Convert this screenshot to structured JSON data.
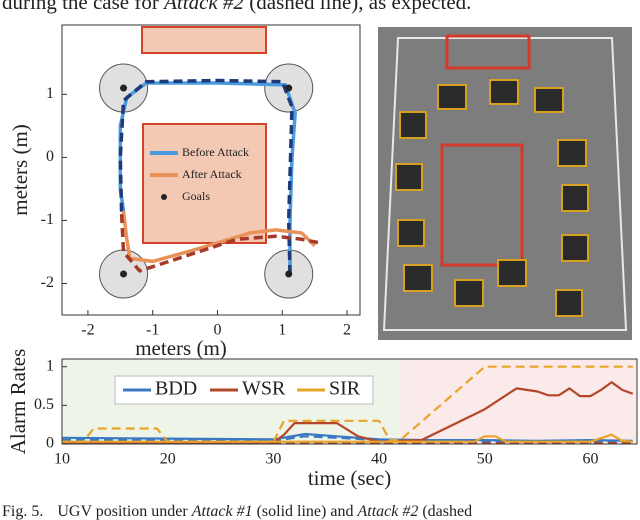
{
  "text_above": [
    "during the case for ",
    "Attack #2",
    " (dashed line), as expected."
  ],
  "chart_data": [
    {
      "type": "line",
      "xlabel": "meters (m)",
      "ylabel": "meters (m)",
      "xlim": [
        -2.4,
        2.2
      ],
      "ylim": [
        -2.5,
        2.1
      ],
      "xticks": [
        -2,
        -1,
        0,
        1,
        2
      ],
      "yticks": [
        -2,
        -1,
        0,
        1
      ],
      "series": [
        {
          "name": "Before Attack",
          "color": "#4a9be0",
          "style": "solid",
          "x": [
            1.12,
            1.12,
            1.15,
            1.2,
            1.05,
            0,
            -1.1,
            -1.4,
            -1.5,
            -1.5,
            -1.45
          ],
          "values": [
            -1.85,
            -1.0,
            0,
            0.7,
            1.15,
            1.18,
            1.18,
            0.95,
            0.5,
            -0.5,
            -0.85
          ]
        },
        {
          "color": "#1f3a7a",
          "style": "dashed",
          "x": [
            1.12,
            1.1,
            1.15,
            1.0,
            0,
            -1.1,
            -1.45,
            -1.5,
            -1.48
          ],
          "values": [
            -1.85,
            -1.0,
            0.8,
            1.2,
            1.22,
            1.2,
            0.9,
            0,
            -0.9
          ]
        },
        {
          "name": "After Attack",
          "color": "#e8925a",
          "style": "solid",
          "x": [
            -1.45,
            -1.4,
            -1.35,
            -1.0,
            -0.3,
            0.5,
            0.9,
            1.3,
            1.5
          ],
          "values": [
            -0.85,
            -1.3,
            -1.6,
            -1.65,
            -1.45,
            -1.2,
            -1.15,
            -1.2,
            -1.4
          ]
        },
        {
          "color": "#a63a2a",
          "style": "dashed",
          "x": [
            -1.48,
            -1.45,
            -1.2,
            -0.6,
            0.3,
            0.9,
            1.3,
            1.55
          ],
          "values": [
            -0.9,
            -1.5,
            -1.8,
            -1.6,
            -1.3,
            -1.25,
            -1.3,
            -1.35
          ]
        },
        {
          "name": "Goals",
          "color": "#222222",
          "style": "markers",
          "x": [
            -1.45,
            1.1,
            -1.45,
            1.1
          ],
          "values": [
            1.1,
            1.1,
            -1.85,
            -1.85
          ]
        }
      ]
    },
    {
      "type": "line",
      "xlabel": "time (sec)",
      "ylabel": "Alarm Rates",
      "xlim": [
        10,
        64.4
      ],
      "ylim": [
        0,
        1.1
      ],
      "xticks": [
        10,
        20,
        30,
        40,
        50,
        60
      ],
      "yticks": [
        0,
        0.5,
        1
      ],
      "regions": [
        {
          "xlim": [
            10,
            42
          ],
          "color": "#eef5e8"
        },
        {
          "xlim": [
            42,
            64.4
          ],
          "color": "#fbeaea"
        }
      ],
      "series": [
        {
          "name": "BDD",
          "color": "#3a78c2",
          "style": "solid",
          "x": [
            10,
            20,
            30,
            33,
            36,
            40,
            45,
            50,
            55,
            60,
            64
          ],
          "values": [
            0.08,
            0.07,
            0.06,
            0.13,
            0.1,
            0.06,
            0.05,
            0.05,
            0.04,
            0.05,
            0.04
          ]
        },
        {
          "color": "#3a78c2",
          "style": "dashed",
          "x": [
            10,
            20,
            30,
            33,
            36,
            40,
            45,
            50,
            55,
            60,
            64
          ],
          "values": [
            0.05,
            0.05,
            0.04,
            0.1,
            0.08,
            0.05,
            0.04,
            0.03,
            0.03,
            0.03,
            0.03
          ]
        },
        {
          "name": "WSR",
          "color": "#b5462a",
          "style": "solid",
          "x": [
            10,
            30,
            31,
            32,
            36,
            38,
            40,
            44,
            47,
            50,
            53,
            55,
            56,
            57,
            58,
            59,
            60,
            61,
            62,
            63,
            64
          ],
          "values": [
            0.02,
            0.02,
            0.12,
            0.27,
            0.27,
            0.1,
            0.03,
            0.05,
            0.25,
            0.45,
            0.72,
            0.68,
            0.63,
            0.63,
            0.72,
            0.62,
            0.62,
            0.7,
            0.8,
            0.7,
            0.65
          ]
        },
        {
          "color": "#b5462a",
          "style": "dashed",
          "x": [
            10,
            20,
            30,
            40,
            50,
            64
          ],
          "values": [
            0.01,
            0.01,
            0.01,
            0.01,
            0.01,
            0.01
          ]
        },
        {
          "name": "SIR",
          "color": "#e8a32a",
          "style": "solid",
          "x": [
            10,
            30,
            40,
            49,
            50,
            51,
            52,
            60,
            62,
            63,
            64
          ],
          "values": [
            0.03,
            0.03,
            0.03,
            0.03,
            0.1,
            0.1,
            0.03,
            0.03,
            0.12,
            0.04,
            0.03
          ]
        },
        {
          "color": "#e8a32a",
          "style": "dashed",
          "x": [
            10,
            12,
            13,
            19,
            20,
            30,
            31,
            40,
            41,
            42,
            50,
            64
          ],
          "values": [
            0.03,
            0.03,
            0.2,
            0.2,
            0.03,
            0.03,
            0.3,
            0.3,
            0.05,
            0.05,
            1,
            1
          ]
        }
      ]
    }
  ],
  "caption": [
    "Fig. 5.",
    "UGV position under ",
    "Attack #1",
    " (solid line) and ",
    "Attack #2",
    " (dashed"
  ]
}
